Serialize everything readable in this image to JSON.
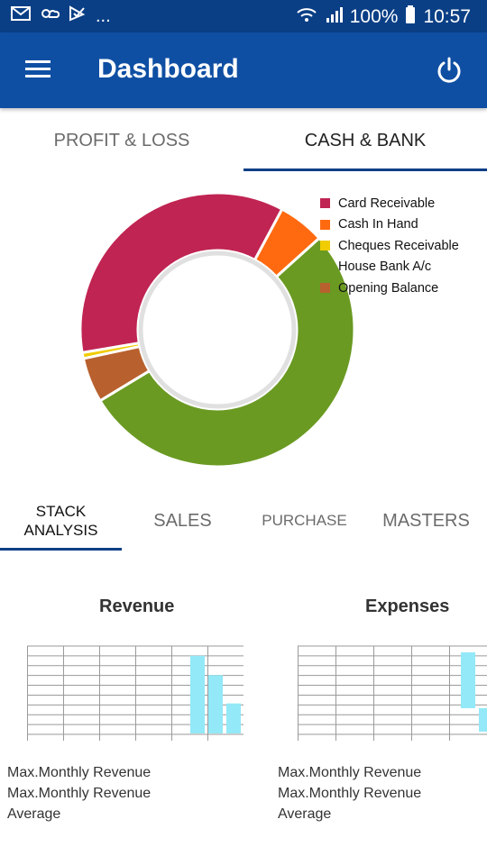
{
  "status_bar": {
    "battery": "100%",
    "time": "10:57",
    "more": "..."
  },
  "app_bar": {
    "title": "Dashboard"
  },
  "top_tabs": {
    "profit_loss": "PROFIT & LOSS",
    "cash_bank": "CASH & BANK",
    "active": "cash_bank"
  },
  "chart_data": {
    "type": "pie",
    "donut": true,
    "legend_position": "top-right",
    "categories": [
      "Card Receivable",
      "Cash In Hand",
      "Cheques Receivable",
      "House Bank A/c",
      "Opening Balance"
    ],
    "values": [
      35.5,
      5.5,
      0.7,
      53.0,
      5.3
    ],
    "colors": [
      "#c02452",
      "#ff6a10",
      "#f0cc00",
      "#6a9a22",
      "#b8612e"
    ]
  },
  "bottom_tabs": {
    "stack_analysis_line1": "STACK",
    "stack_analysis_line2": "ANALYSIS",
    "sales": "SALES",
    "purchase": "PURCHASE",
    "masters": "MASTERS"
  },
  "revenue_card": {
    "title": "Revenue",
    "caption_1": "Max.Monthly Revenue",
    "caption_2": "Max.Monthly Revenue",
    "caption_3": "Average"
  },
  "expenses_card": {
    "title": "Expenses",
    "caption_1": "Max.Monthly Revenue",
    "caption_2": "Max.Monthly Revenue",
    "caption_3": "Average"
  },
  "revenue_chart": {
    "type": "bar",
    "values": [
      88,
      66,
      34
    ],
    "ylim": [
      0,
      100
    ]
  },
  "expenses_chart": {
    "type": "bar",
    "values": [
      62,
      26
    ],
    "ylim": [
      0,
      100
    ]
  }
}
